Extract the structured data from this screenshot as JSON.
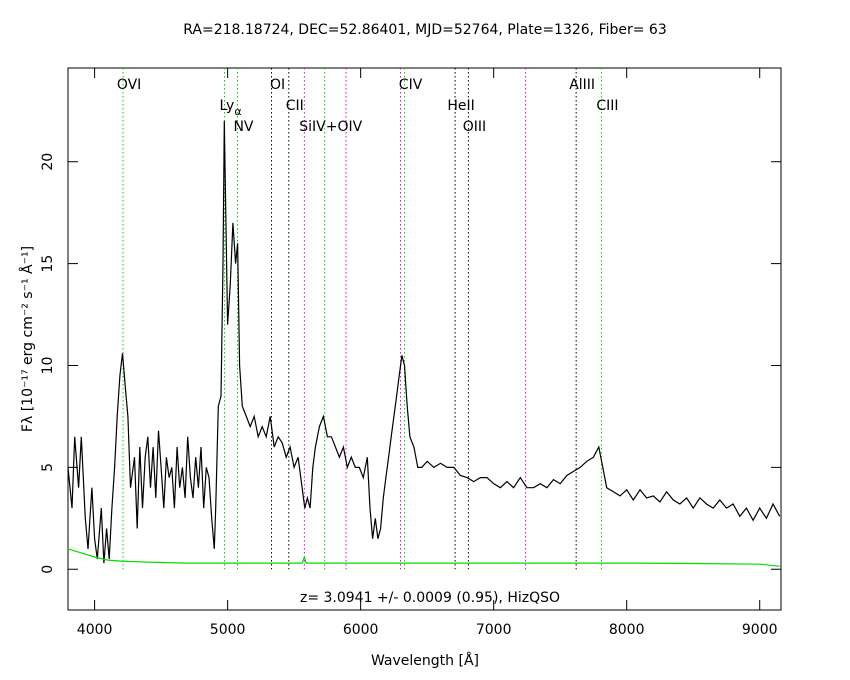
{
  "chart_data": {
    "type": "line",
    "title": "RA=218.18724, DEC=52.86401, MJD=52764, Plate=1326, Fiber= 63",
    "xlabel": "Wavelength [Å]",
    "ylabel": "Fλ [10⁻¹⁷ erg cm⁻² s⁻¹ Å⁻¹]",
    "annotation": "z= 3.0941 +/- 0.0009 (0.95), HizQSO",
    "xlim": [
      3800,
      9160
    ],
    "ylim": [
      -2,
      24.6
    ],
    "xticks": [
      4000,
      5000,
      6000,
      7000,
      8000,
      9000
    ],
    "yticks": [
      0,
      5,
      10,
      15,
      20
    ],
    "series": [
      {
        "color": "#000000",
        "x": [
          3800,
          3830,
          3850,
          3880,
          3900,
          3930,
          3950,
          3980,
          4000,
          4020,
          4050,
          4070,
          4090,
          4110,
          4130,
          4150,
          4170,
          4190,
          4210,
          4230,
          4250,
          4270,
          4300,
          4320,
          4340,
          4360,
          4380,
          4400,
          4420,
          4440,
          4460,
          4480,
          4500,
          4520,
          4540,
          4560,
          4580,
          4600,
          4620,
          4640,
          4660,
          4680,
          4700,
          4720,
          4740,
          4760,
          4780,
          4800,
          4820,
          4840,
          4860,
          4880,
          4900,
          4910,
          4930,
          4950,
          4965,
          4975,
          4985,
          5000,
          5020,
          5040,
          5060,
          5075,
          5090,
          5110,
          5140,
          5170,
          5200,
          5230,
          5260,
          5290,
          5320,
          5350,
          5380,
          5410,
          5440,
          5470,
          5500,
          5530,
          5560,
          5580,
          5600,
          5620,
          5640,
          5660,
          5690,
          5720,
          5750,
          5780,
          5810,
          5840,
          5870,
          5900,
          5930,
          5960,
          5990,
          6020,
          6050,
          6070,
          6090,
          6110,
          6130,
          6150,
          6170,
          6190,
          6210,
          6230,
          6250,
          6270,
          6290,
          6310,
          6330,
          6350,
          6370,
          6400,
          6430,
          6460,
          6500,
          6550,
          6600,
          6650,
          6700,
          6750,
          6800,
          6850,
          6900,
          6950,
          7000,
          7050,
          7100,
          7150,
          7200,
          7250,
          7300,
          7350,
          7400,
          7450,
          7500,
          7550,
          7600,
          7650,
          7700,
          7750,
          7790,
          7820,
          7850,
          7900,
          7950,
          8000,
          8050,
          8100,
          8150,
          8200,
          8250,
          8300,
          8350,
          8400,
          8450,
          8500,
          8550,
          8600,
          8650,
          8700,
          8750,
          8800,
          8850,
          8900,
          8950,
          9000,
          9050,
          9100,
          9150
        ],
        "values": [
          5.0,
          3.0,
          6.5,
          4.0,
          6.5,
          2.5,
          1.0,
          4.0,
          1.5,
          0.5,
          3.0,
          0.3,
          2.0,
          0.5,
          3.0,
          5.0,
          7.5,
          9.5,
          10.6,
          9.0,
          7.5,
          4.0,
          5.5,
          2.0,
          6.0,
          3.0,
          5.5,
          6.5,
          4.0,
          6.0,
          3.5,
          6.8,
          5.0,
          3.0,
          5.5,
          4.5,
          5.0,
          3.0,
          6.0,
          4.0,
          5.0,
          3.5,
          6.5,
          4.5,
          3.5,
          5.5,
          4.0,
          6.0,
          3.0,
          5.0,
          4.5,
          2.5,
          1.0,
          3.0,
          8.0,
          8.5,
          15,
          22,
          18,
          12,
          14,
          17,
          15,
          16,
          10,
          8.0,
          7.5,
          7.0,
          7.5,
          6.5,
          7.0,
          6.5,
          7.5,
          6.0,
          6.5,
          6.2,
          5.5,
          6.0,
          5.0,
          5.5,
          4.0,
          3.0,
          3.5,
          3.0,
          5.0,
          6.0,
          7.0,
          7.5,
          6.5,
          6.5,
          6.0,
          5.5,
          6.0,
          5.0,
          5.5,
          5.0,
          5.0,
          4.5,
          5.5,
          3.0,
          1.5,
          2.5,
          1.5,
          2.0,
          3.5,
          4.5,
          5.5,
          6.5,
          7.5,
          8.5,
          9.5,
          10.5,
          10.0,
          8.0,
          6.5,
          6.0,
          5.0,
          5.0,
          5.3,
          5.0,
          5.2,
          5.0,
          5.0,
          4.6,
          4.5,
          4.3,
          4.5,
          4.5,
          4.2,
          4.0,
          4.3,
          4.0,
          4.5,
          4.0,
          4.0,
          4.2,
          4.0,
          4.4,
          4.2,
          4.6,
          4.8,
          5.0,
          5.3,
          5.5,
          6.0,
          5.0,
          4.0,
          3.8,
          3.6,
          3.9,
          3.4,
          3.9,
          3.5,
          3.6,
          3.3,
          3.8,
          3.4,
          3.2,
          3.5,
          3.0,
          3.5,
          3.2,
          3.0,
          3.4,
          3.0,
          3.2,
          2.6,
          3.0,
          2.4,
          3.0,
          2.5,
          3.2,
          2.6
        ]
      },
      {
        "color": "#00dd00",
        "x": [
          3800,
          3900,
          4000,
          4100,
          4200,
          4400,
          4700,
          5000,
          5300,
          5560,
          5577,
          5590,
          5800,
          6200,
          6600,
          7000,
          7500,
          8000,
          8500,
          9000,
          9150
        ],
        "values": [
          1.0,
          0.8,
          0.6,
          0.45,
          0.4,
          0.35,
          0.3,
          0.3,
          0.3,
          0.3,
          0.6,
          0.3,
          0.3,
          0.3,
          0.3,
          0.3,
          0.3,
          0.3,
          0.28,
          0.25,
          0.15
        ]
      }
    ],
    "lines": [
      {
        "label": "OVI",
        "wavelength": 4214,
        "color": "#00cc00"
      },
      {
        "label": "Ly",
        "sub": "α",
        "wavelength": 4977,
        "color": "#00cc00"
      },
      {
        "label": "NV",
        "wavelength": 5074,
        "color": "#00cc00"
      },
      {
        "label": "OI",
        "wavelength": 5330,
        "color": "#000000"
      },
      {
        "label": "CII",
        "wavelength": 5460,
        "color": "#000000"
      },
      {
        "label": "SiIV+OIV",
        "wavelength": 5730,
        "color": "#00cc00"
      },
      {
        "label": "CIV",
        "wavelength": 6330,
        "color": "#00cc00"
      },
      {
        "label": "HeII",
        "wavelength": 6710,
        "color": "#000000"
      },
      {
        "label": "OIII",
        "wavelength": 6810,
        "color": "#000000"
      },
      {
        "label": "AlIII",
        "wavelength": 7620,
        "color": "#000000"
      },
      {
        "label": "CIII",
        "wavelength": 7810,
        "color": "#00cc00"
      }
    ],
    "sky_lines": {
      "color": "#dd00dd",
      "wavelengths": [
        5577,
        5890,
        6300,
        7240
      ]
    }
  }
}
